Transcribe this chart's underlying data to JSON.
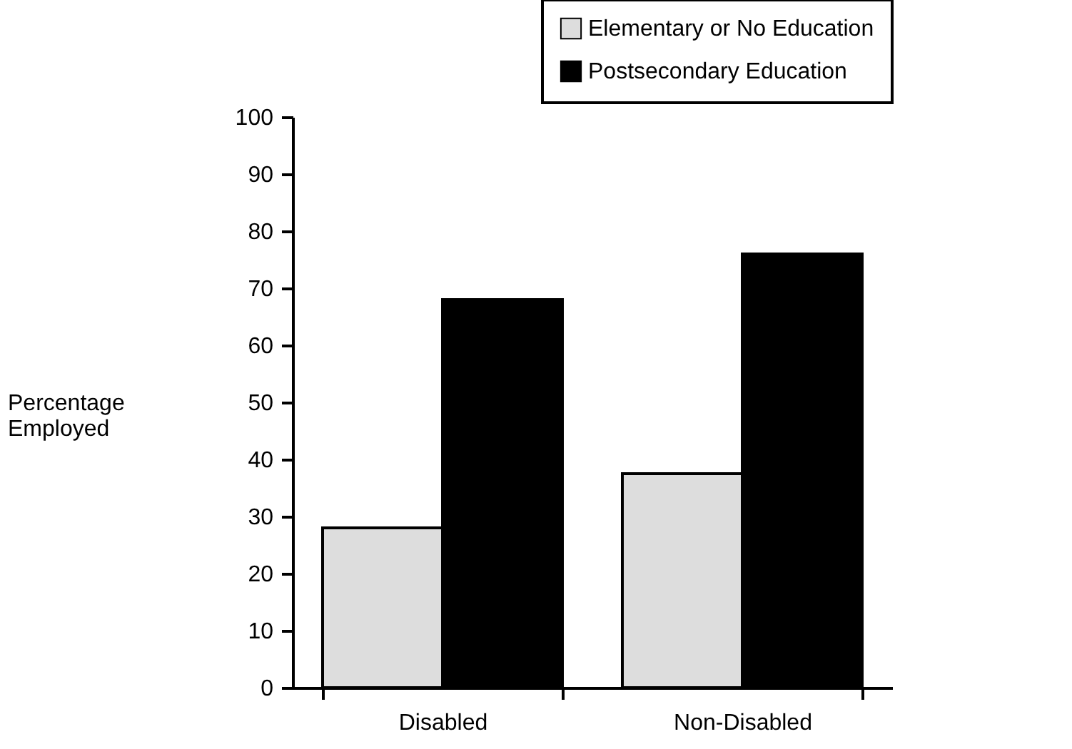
{
  "chart_data": {
    "type": "bar",
    "ylabel": "Percentage Employed",
    "categories": [
      "Disabled",
      "Non-Disabled"
    ],
    "series": [
      {
        "name": "Elementary or No Education",
        "color": "#dddddd",
        "values": [
          28,
          37.5
        ]
      },
      {
        "name": "Postsecondary Education",
        "color": "#000000",
        "values": [
          68,
          76
        ]
      }
    ],
    "ylim": [
      0,
      100
    ],
    "yticks": [
      0,
      10,
      20,
      30,
      40,
      50,
      60,
      70,
      80,
      90,
      100
    ],
    "grid": false,
    "legend": "top right"
  }
}
